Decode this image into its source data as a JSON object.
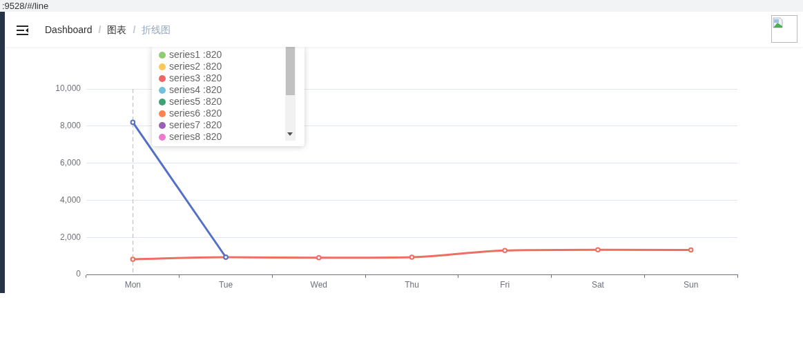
{
  "chart_data": {
    "type": "line",
    "categories": [
      "Mon",
      "Tue",
      "Wed",
      "Thu",
      "Fri",
      "Sat",
      "Sun"
    ],
    "series": [
      {
        "color": "#5470c6",
        "values": [
          8200,
          930,
          null,
          null,
          null,
          null,
          null
        ]
      },
      {
        "color": "#ec6f61",
        "values": [
          820,
          930,
          900,
          930,
          1290,
          1330,
          1320
        ]
      }
    ],
    "ylim": [
      0,
      10000
    ],
    "yticks": [
      0,
      {
        "value": 2000,
        "label": "2,000"
      },
      {
        "value": 4000,
        "label": "4,000"
      },
      {
        "value": 6000,
        "label": "6,000"
      },
      {
        "value": 8000,
        "label": "8,000"
      },
      {
        "value": 10000,
        "label": "10,000"
      }
    ],
    "grid": "y",
    "marker": "circle",
    "line_style": "solid",
    "ref_lines": [
      {
        "axis": "x",
        "value": "Mon",
        "color": "#bbbbbb",
        "line_style": "dashed"
      }
    ],
    "annotations": [
      ":9528/#/line",
      "Dashboard",
      "/",
      "图表",
      "/",
      "折线图",
      "series1 :820",
      "series2 :820",
      "series3 :820",
      "series4 :820",
      "series5 :820",
      "series6 :820",
      "series7 :820",
      "series8 :820"
    ]
  }
}
